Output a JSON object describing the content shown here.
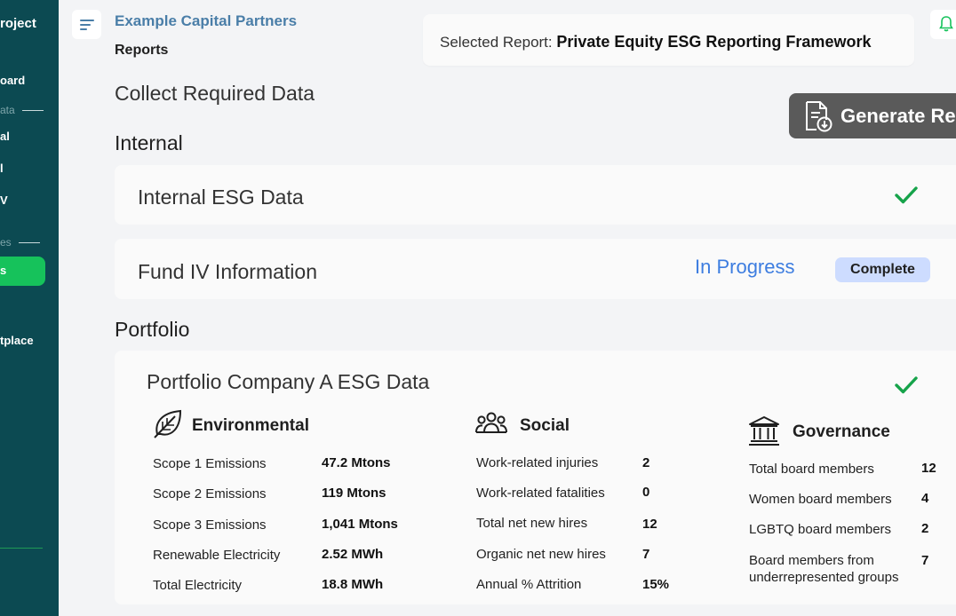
{
  "sidebar": {
    "brand": "roject",
    "items": [
      {
        "label": "oard"
      },
      {
        "label": "al"
      },
      {
        "label": "l"
      },
      {
        "label": "V"
      },
      {
        "label": "s"
      },
      {
        "label": "tplace"
      }
    ],
    "sections": [
      {
        "label": "ata"
      },
      {
        "label": "es"
      }
    ],
    "active_index": 4
  },
  "header": {
    "company": "Example Capital Partners",
    "breadcrumb": "Reports",
    "selected_report_label": "Selected Report:",
    "selected_report_value": "Private Equity ESG Reporting Framework"
  },
  "main": {
    "title": "Collect Required Data",
    "generate_label": "Generate Re",
    "internal_heading": "Internal",
    "portfolio_heading": "Portfolio",
    "internal_cards": [
      {
        "title": "Internal ESG Data"
      },
      {
        "title": "Fund IV Information",
        "status": "In Progress",
        "action": "Complete"
      }
    ],
    "portfolio_card": {
      "title": "Portfolio Company A ESG Data",
      "environmental": {
        "heading": "Environmental",
        "rows": [
          {
            "label": "Scope 1 Emissions",
            "value": "47.2 Mtons"
          },
          {
            "label": "Scope 2 Emissions",
            "value": "119 Mtons"
          },
          {
            "label": "Scope 3 Emissions",
            "value": "1,041 Mtons"
          },
          {
            "label": "Renewable Electricity",
            "value": "2.52 MWh"
          },
          {
            "label": "Total Electricity",
            "value": "18.8 MWh"
          }
        ]
      },
      "social": {
        "heading": "Social",
        "rows": [
          {
            "label": "Work-related injuries",
            "value": "2"
          },
          {
            "label": "Work-related fatalities",
            "value": "0"
          },
          {
            "label": "Total net new hires",
            "value": "12"
          },
          {
            "label": "Organic net new hires",
            "value": "7"
          },
          {
            "label": "Annual % Attrition",
            "value": "15%"
          }
        ]
      },
      "governance": {
        "heading": "Governance",
        "rows": [
          {
            "label": "Total board members",
            "value": "12"
          },
          {
            "label": "Women board members",
            "value": "4"
          },
          {
            "label": "LGBTQ board members",
            "value": "2"
          },
          {
            "label": "Board members from underrepresented groups",
            "value": "7"
          }
        ]
      }
    }
  },
  "colors": {
    "sidebar_bg": "#0c4a52",
    "active_green": "#16c25b",
    "check_green": "#16a34a",
    "link_blue": "#3d7de0",
    "complete_bg": "#cddcff",
    "company_blue": "#4a7ea8"
  }
}
